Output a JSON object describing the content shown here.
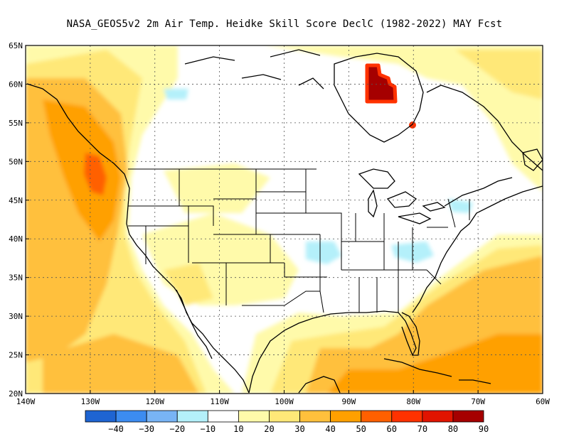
{
  "title": "NASA_GEOS5v2  2m Air Temp. Heidke Skill Score DeclC (1982-2022) MAY Fcst",
  "map": {
    "lat_labels": [
      "65N",
      "60N",
      "55N",
      "50N",
      "45N",
      "40N",
      "35N",
      "30N",
      "25N",
      "20N"
    ],
    "lon_labels": [
      "140W",
      "130W",
      "120W",
      "110W",
      "100W",
      "90W",
      "80W",
      "70W",
      "60W"
    ],
    "lat_range": [
      20,
      65
    ],
    "lon_range": [
      -140,
      -60
    ],
    "grid": "dotted",
    "background_color": "#ffffff",
    "coastline_color": "#000000"
  },
  "colorbar": {
    "labels": [
      "−40",
      "−30",
      "−20",
      "−10",
      "10",
      "20",
      "30",
      "40",
      "50",
      "60",
      "70",
      "80",
      "90"
    ],
    "colors": [
      "#1e64d2",
      "#3c8cf0",
      "#78b4f5",
      "#b4f0fa",
      "#ffffff",
      "#fffaaa",
      "#ffe878",
      "#ffc03c",
      "#ffa000",
      "#ff6000",
      "#ff3200",
      "#e11400",
      "#a50000"
    ]
  }
}
